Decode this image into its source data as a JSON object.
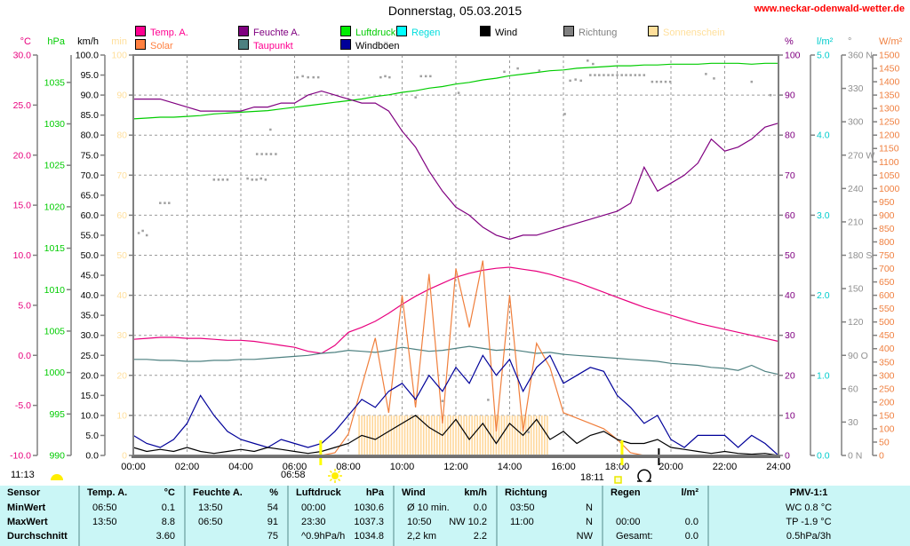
{
  "page": {
    "title": "Donnerstag, 05.03.2015",
    "website": "www.neckar-odenwald-wetter.de"
  },
  "legend": {
    "rows": [
      {
        "y": 29,
        "items": [
          {
            "label": "Temp. A.",
            "x": 152,
            "swatch": "#ff0090",
            "text_color": "#ff0090"
          },
          {
            "label": "Feuchte A.",
            "x": 268,
            "swatch": "#800080",
            "text_color": "#800080"
          },
          {
            "label": "Luftdruck",
            "x": 383,
            "swatch": "#00ee00",
            "text_color": "#00cc00"
          },
          {
            "label": "Regen",
            "x": 446,
            "swatch": "#00ffff",
            "text_color": "#00dddd"
          },
          {
            "label": "Wind",
            "x": 540,
            "swatch": "#000000",
            "text_color": "#000000"
          },
          {
            "label": "Richtung",
            "x": 634,
            "swatch": "#808080",
            "text_color": "#808080"
          },
          {
            "label": "Sonnenschein",
            "x": 729,
            "swatch": "#ffdf9b",
            "text_color": "#ffdf9b"
          }
        ]
      },
      {
        "y": 44,
        "items": [
          {
            "label": "Solar",
            "x": 152,
            "swatch": "#ff8040",
            "text_color": "#ff8040"
          },
          {
            "label": "Taupunkt",
            "x": 268,
            "swatch": "#4d8080",
            "text_color": "#ff0090"
          },
          {
            "label": "Windböen",
            "x": 383,
            "swatch": "#000099",
            "text_color": "#000000"
          }
        ]
      }
    ]
  },
  "footer": {
    "daylight_time": "11:13",
    "sunrise_time": "06:58",
    "sunset_time": "18:11"
  },
  "chart_data": {
    "type": "line",
    "title": "Donnerstag, 05.03.2015",
    "x_unit": "hours",
    "x_range": [
      0,
      24
    ],
    "x_ticks": [
      "00:00",
      "02:00",
      "04:00",
      "06:00",
      "08:00",
      "10:00",
      "12:00",
      "14:00",
      "16:00",
      "18:00",
      "20:00",
      "22:00",
      "24:00"
    ],
    "grid": {
      "vertical_every_h": 2,
      "horizontal_divisions": 10,
      "style": "dashed"
    },
    "scales": {
      "temp": {
        "min": -10,
        "max": 30
      },
      "hpa": {
        "min": 990,
        "max": 1038.3
      },
      "kmh": {
        "min": 0,
        "max": 100
      },
      "min": {
        "min": 0,
        "max": 100
      },
      "pct": {
        "min": 0,
        "max": 100
      },
      "lm2": {
        "min": 0,
        "max": 5
      },
      "deg": {
        "min": 0,
        "max": 360
      },
      "wm2": {
        "min": 0,
        "max": 1500
      }
    },
    "axes_left": [
      {
        "scale": "temp",
        "unit": "°C",
        "color": "#e8007e",
        "line_x": 42,
        "first": 30,
        "step": -5,
        "count": 9,
        "decimals": 1
      },
      {
        "scale": "hpa",
        "unit": "hPa",
        "color": "#00cc00",
        "line_x": 80,
        "first": 1035,
        "step": -5,
        "count": 10,
        "decimals": 0
      },
      {
        "scale": "kmh",
        "unit": "km/h",
        "color": "#000000",
        "line_x": 118,
        "first": 100,
        "step": -5,
        "count": 21,
        "decimals": 1
      },
      {
        "scale": "min",
        "unit": "min",
        "color": "#ffdf9b",
        "line_x": 150,
        "first": 100,
        "step": -10,
        "count": 11,
        "decimals": 0
      }
    ],
    "axes_right": [
      {
        "scale": "pct",
        "unit": "%",
        "color": "#800080",
        "line_x": 876,
        "first": 100,
        "step": -10,
        "count": 11,
        "decimals": 0
      },
      {
        "scale": "lm2",
        "unit": "l/m²",
        "color": "#00cccc",
        "line_x": 912,
        "first": 5,
        "step": -1,
        "count": 6,
        "decimals": 1
      },
      {
        "scale": "deg",
        "unit": "°",
        "color": "#909090",
        "line_x": 947,
        "labels": [
          [
            "360 N",
            360
          ],
          [
            "330",
            330
          ],
          [
            "300",
            300
          ],
          [
            "270 W",
            270
          ],
          [
            "240",
            240
          ],
          [
            "210",
            210
          ],
          [
            "180 S",
            180
          ],
          [
            "150",
            150
          ],
          [
            "120",
            120
          ],
          [
            "90 O",
            90
          ],
          [
            "60",
            60
          ],
          [
            "30",
            30
          ],
          [
            "0 N",
            0
          ]
        ]
      },
      {
        "scale": "wm2",
        "unit": "W/m²",
        "color": "#f08040",
        "line_x": 982,
        "first": 1500,
        "step": -50,
        "count": 31,
        "decimals": 0
      }
    ],
    "interval_h": 0.5,
    "series": [
      {
        "name": "Luftdruck",
        "axis": "hpa",
        "color": "#00cc00",
        "values": [
          1030.6,
          1030.7,
          1030.8,
          1030.8,
          1030.9,
          1031.0,
          1031.2,
          1031.3,
          1031.4,
          1031.5,
          1031.6,
          1031.8,
          1032.0,
          1032.2,
          1032.4,
          1032.6,
          1032.8,
          1033.0,
          1033.3,
          1033.5,
          1033.8,
          1034.0,
          1034.3,
          1034.5,
          1034.8,
          1035.0,
          1035.3,
          1035.5,
          1035.8,
          1036.0,
          1036.2,
          1036.4,
          1036.5,
          1036.7,
          1036.8,
          1036.9,
          1037.0,
          1037.0,
          1037.1,
          1037.1,
          1037.2,
          1037.2,
          1037.2,
          1037.3,
          1037.3,
          1037.3,
          1037.2,
          1037.3,
          1037.3
        ]
      },
      {
        "name": "Feuchte A.",
        "axis": "pct",
        "color": "#800080",
        "values": [
          89,
          89,
          89,
          88,
          87,
          86,
          86,
          86,
          86,
          87,
          87,
          88,
          88,
          90,
          91,
          90,
          89,
          88,
          88,
          86,
          81,
          77,
          71,
          66,
          62,
          60,
          57,
          55,
          54,
          55,
          55,
          56,
          57,
          58,
          59,
          60,
          61,
          63,
          72,
          66,
          68,
          70,
          73,
          79,
          76,
          77,
          79,
          82,
          83
        ]
      },
      {
        "name": "Temp. A.",
        "axis": "temp",
        "color": "#e8007e",
        "values": [
          1.6,
          1.7,
          1.8,
          1.8,
          1.7,
          1.7,
          1.6,
          1.5,
          1.5,
          1.4,
          1.2,
          1.0,
          0.8,
          0.4,
          0.2,
          1.0,
          2.3,
          2.8,
          3.4,
          4.2,
          5.1,
          5.9,
          6.6,
          7.2,
          7.8,
          8.2,
          8.5,
          8.7,
          8.8,
          8.6,
          8.4,
          8.1,
          7.7,
          7.3,
          6.8,
          6.3,
          5.8,
          5.3,
          4.8,
          4.4,
          4.0,
          3.6,
          3.2,
          2.9,
          2.6,
          2.3,
          2.0,
          1.7,
          1.4
        ]
      },
      {
        "name": "Taupunkt",
        "axis": "temp",
        "color": "#4d8080",
        "values": [
          -0.4,
          -0.4,
          -0.5,
          -0.5,
          -0.6,
          -0.6,
          -0.5,
          -0.5,
          -0.4,
          -0.4,
          -0.3,
          -0.2,
          -0.1,
          0.0,
          0.2,
          0.3,
          0.5,
          0.4,
          0.3,
          0.5,
          0.8,
          0.6,
          0.4,
          0.5,
          0.7,
          0.9,
          0.7,
          0.5,
          0.6,
          0.4,
          0.2,
          0.3,
          0.1,
          0.0,
          -0.1,
          -0.2,
          -0.3,
          -0.4,
          -0.5,
          -0.6,
          -0.8,
          -0.9,
          -1.0,
          -1.2,
          -1.3,
          -1.5,
          -1.0,
          -1.6,
          -1.9
        ]
      },
      {
        "name": "Solar",
        "axis": "wm2",
        "color": "#f07f3c",
        "values": [
          0,
          0,
          0,
          0,
          0,
          0,
          0,
          0,
          0,
          0,
          0,
          0,
          0,
          0,
          0,
          10,
          80,
          260,
          440,
          160,
          600,
          180,
          680,
          120,
          700,
          480,
          730,
          90,
          600,
          90,
          420,
          330,
          160,
          140,
          120,
          100,
          60,
          10,
          0,
          0,
          0,
          0,
          0,
          0,
          0,
          0,
          0,
          0,
          0
        ]
      },
      {
        "name": "Windböen",
        "axis": "kmh",
        "color": "#000099",
        "values": [
          5,
          3,
          2,
          4,
          8,
          15,
          10,
          6,
          4,
          3,
          2,
          4,
          3,
          2,
          3,
          6,
          10,
          14,
          12,
          16,
          18,
          14,
          20,
          16,
          22,
          18,
          25,
          20,
          24,
          16,
          22,
          25,
          18,
          20,
          22,
          21,
          15,
          12,
          8,
          10,
          4,
          2,
          5,
          5,
          5,
          2,
          5,
          3,
          0
        ]
      },
      {
        "name": "Wind",
        "axis": "kmh",
        "color": "#000000",
        "values": [
          2,
          1,
          1.5,
          1,
          2,
          1,
          0.5,
          1,
          1.5,
          1,
          2,
          1.5,
          1,
          0.5,
          1,
          2,
          3,
          5,
          4,
          6,
          8,
          10,
          7,
          5,
          9,
          4,
          8,
          3,
          8,
          5,
          9,
          4,
          6,
          3,
          5,
          6,
          4,
          3,
          3,
          4,
          2,
          1.5,
          1,
          0.5,
          1,
          0.5,
          0.3,
          0.5,
          0
        ]
      },
      {
        "name": "Regen",
        "axis": "lm2",
        "color": "#00e5e5",
        "values": [
          0,
          0,
          0,
          0,
          0,
          0,
          0,
          0,
          0,
          0,
          0,
          0,
          0,
          0,
          0,
          0,
          0,
          0,
          0,
          0,
          0,
          0,
          0,
          0,
          0,
          0,
          0,
          0,
          0,
          0,
          0,
          0,
          0,
          0,
          0,
          0,
          0,
          0,
          0,
          0,
          0,
          0,
          0,
          0,
          0,
          0,
          0,
          0,
          0
        ]
      }
    ],
    "sunshine": {
      "name": "Sonnenschein",
      "axis": "min",
      "color": "#ffd79a",
      "segments": [
        [
          8.4,
          15.4,
          10
        ]
      ]
    },
    "direction_points": {
      "name": "Richtung",
      "axis": "deg",
      "color": "#a0a0a0",
      "points": [
        [
          0.2,
          200
        ],
        [
          0.35,
          202
        ],
        [
          0.5,
          198
        ],
        [
          1.0,
          227
        ],
        [
          1.17,
          227
        ],
        [
          1.33,
          227
        ],
        [
          3.0,
          248
        ],
        [
          3.17,
          248
        ],
        [
          3.33,
          248
        ],
        [
          3.5,
          248
        ],
        [
          4.25,
          249
        ],
        [
          4.42,
          248
        ],
        [
          4.58,
          248
        ],
        [
          4.75,
          249
        ],
        [
          4.92,
          248
        ],
        [
          4.6,
          271
        ],
        [
          4.78,
          271
        ],
        [
          4.95,
          271
        ],
        [
          5.12,
          271
        ],
        [
          5.3,
          271
        ],
        [
          5.1,
          293
        ],
        [
          6.1,
          340
        ],
        [
          6.3,
          341
        ],
        [
          6.5,
          340
        ],
        [
          6.7,
          340
        ],
        [
          6.88,
          340
        ],
        [
          9.2,
          340
        ],
        [
          9.37,
          341
        ],
        [
          9.53,
          340
        ],
        [
          10.5,
          322
        ],
        [
          10.7,
          341
        ],
        [
          10.88,
          341
        ],
        [
          11.05,
          341
        ],
        [
          12.1,
          326
        ],
        [
          11.5,
          49
        ],
        [
          13.2,
          50
        ],
        [
          14.7,
          21
        ],
        [
          13.8,
          345
        ],
        [
          14.3,
          348
        ],
        [
          15.1,
          346
        ],
        [
          16.05,
          307
        ],
        [
          16.25,
          337
        ],
        [
          16.45,
          338
        ],
        [
          16.65,
          337
        ],
        [
          16.9,
          355
        ],
        [
          17.1,
          352
        ],
        [
          17.0,
          342
        ],
        [
          17.17,
          342
        ],
        [
          17.33,
          342
        ],
        [
          17.5,
          342
        ],
        [
          17.67,
          342
        ],
        [
          17.83,
          342
        ],
        [
          18.0,
          342
        ],
        [
          18.17,
          342
        ],
        [
          18.33,
          342
        ],
        [
          18.5,
          342
        ],
        [
          18.67,
          342
        ],
        [
          18.83,
          342
        ],
        [
          19.0,
          342
        ],
        [
          19.3,
          336
        ],
        [
          19.47,
          336
        ],
        [
          19.63,
          336
        ],
        [
          19.8,
          336
        ],
        [
          19.97,
          336
        ],
        [
          21.3,
          343
        ],
        [
          21.6,
          339
        ],
        [
          23.0,
          336
        ],
        [
          23.7,
          324
        ]
      ]
    },
    "markers": {
      "sunrise_h": 6.97,
      "sunset_h": 18.18,
      "moonrise_h": 19.55
    }
  },
  "table": {
    "bg": "#caf6f6",
    "divider_color": "#8fc0c0",
    "row_header_labels": [
      "Sensor",
      "MinWert",
      "MaxWert",
      "Durchschnitt"
    ],
    "boundaries": [
      0,
      88,
      207,
      323,
      442,
      558,
      677,
      796,
      1024
    ],
    "columns": [
      {
        "header": [
          "Temp. A.",
          "°C"
        ],
        "rows": [
          [
            "06:50",
            "0.1"
          ],
          [
            "13:50",
            "8.8"
          ],
          [
            "",
            "3.60"
          ]
        ]
      },
      {
        "header": [
          "Feuchte A.",
          "%"
        ],
        "rows": [
          [
            "13:50",
            "54"
          ],
          [
            "06:50",
            "91"
          ],
          [
            "",
            "75"
          ]
        ]
      },
      {
        "header": [
          "Luftdruck",
          "hPa"
        ],
        "rows": [
          [
            "00:00",
            "1030.6"
          ],
          [
            "23:30",
            "1037.3"
          ],
          [
            "^0.9hPa/h",
            "1034.8"
          ]
        ]
      },
      {
        "header": [
          "Wind",
          "km/h"
        ],
        "rows": [
          [
            "Ø 10 min.",
            "0.0"
          ],
          [
            "10:50",
            "NW 10.2"
          ],
          [
            "2,2 km",
            "2.2"
          ]
        ]
      },
      {
        "header": [
          "Richtung",
          ""
        ],
        "rows": [
          [
            "03:50",
            "N"
          ],
          [
            "11:00",
            "N"
          ],
          [
            "",
            "NW"
          ]
        ]
      },
      {
        "header": [
          "Regen",
          "l/m²"
        ],
        "rows": [
          [
            "",
            ""
          ],
          [
            "00:00",
            "0.0"
          ],
          [
            "Gesamt:",
            "0.0"
          ]
        ]
      },
      {
        "header_center": "PMV-1:1",
        "rows_center": [
          "WC 0.8 °C",
          "TP -1.9 °C",
          "0.5hPa/3h"
        ]
      }
    ]
  }
}
